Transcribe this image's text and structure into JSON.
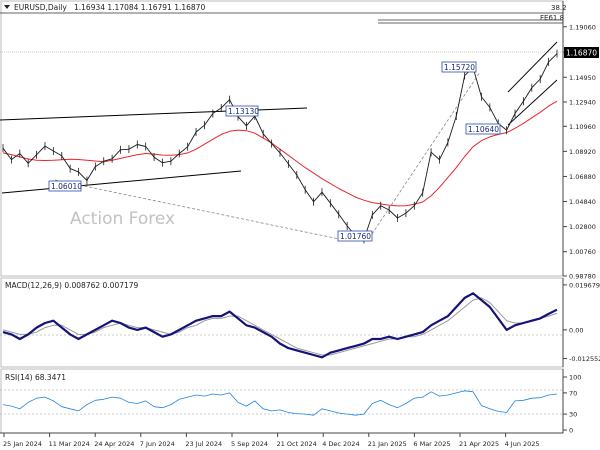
{
  "header": {
    "symbol": "EURUSD,Daily",
    "ohlc": "1.16934 1.17084 1.16791 1.16870"
  },
  "watermark": "Action Forex",
  "fib": {
    "level": "38.2",
    "label": "FE61.8"
  },
  "colors": {
    "price": "#1a1a1a",
    "ema": "#e8262e",
    "macd": "#15127a",
    "signal": "#9a9a9a",
    "rsi": "#1e86e0",
    "trendline": "#000000",
    "axis_text": "#222222",
    "grid_dashed": "#999999"
  },
  "chart_data": [
    {
      "name": "price",
      "type": "line",
      "y_ticks": [
        "1.19060",
        "1.16980",
        "1.14950",
        "1.12940",
        "1.10960",
        "1.08920",
        "1.06880",
        "1.04840",
        "1.02800",
        "1.00760",
        "0.98780"
      ],
      "ylim": [
        0.9878,
        1.2083
      ],
      "current_price": "1.16870",
      "x_ticks": [
        "25 Jan 2024",
        "11 Mar 2024",
        "24 Apr 2024",
        "7 Jun 2024",
        "23 Jul 2024",
        "5 Sep 2024",
        "21 Oct 2024",
        "4 Dec 2024",
        "21 Jan 2025",
        "6 Mar 2025",
        "21 Apr 2025",
        "4 Jun 2025"
      ],
      "annotations": [
        {
          "label": "1.13130",
          "value": 1.1313
        },
        {
          "label": "1.06010",
          "value": 1.0601
        },
        {
          "label": "1.01760",
          "value": 1.0176
        },
        {
          "label": "1.15720",
          "value": 1.1572
        },
        {
          "label": "1.10640",
          "value": 1.1064
        }
      ],
      "series": [
        {
          "values": [
            1.0918,
            1.0825,
            1.0875,
            1.0795,
            1.0865,
            1.0935,
            1.0895,
            1.0855,
            1.0752,
            1.0725,
            1.0655,
            1.0768,
            1.0812,
            1.0832,
            1.0905,
            1.091,
            1.0948,
            1.0932,
            1.0845,
            1.08,
            1.0812,
            1.0875,
            1.093,
            1.105,
            1.1105,
            1.12,
            1.1245,
            1.1313,
            1.1175,
            1.11,
            1.118,
            1.1035,
            1.0955,
            1.088,
            1.079,
            1.07,
            1.058,
            1.0482,
            1.056,
            1.047,
            1.038,
            1.0285,
            1.0205,
            1.0176,
            1.0375,
            1.045,
            1.0415,
            1.035,
            1.039,
            1.045,
            1.0555,
            1.0885,
            1.0825,
            1.0965,
            1.118,
            1.151,
            1.1572,
            1.1335,
            1.125,
            1.112,
            1.1064,
            1.12,
            1.13,
            1.141,
            1.148,
            1.162,
            1.1687
          ]
        },
        {
          "values": [
            1.088,
            1.0866,
            1.0847,
            1.083,
            1.082,
            1.0818,
            1.082,
            1.0824,
            1.0828,
            1.0826,
            1.082,
            1.0814,
            1.0808,
            1.082,
            1.0835,
            1.085,
            1.0865,
            1.0875,
            1.087,
            1.0862,
            1.086,
            1.0866,
            1.088,
            1.091,
            1.095,
            1.099,
            1.103,
            1.1055,
            1.1065,
            1.106,
            1.104,
            1.1,
            1.096,
            1.091,
            1.086,
            1.081,
            1.076,
            1.0715,
            1.067,
            1.063,
            1.059,
            1.0555,
            1.052,
            1.0495,
            1.0475,
            1.0465,
            1.0455,
            1.0448,
            1.045,
            1.0462,
            1.048,
            1.053,
            1.06,
            1.068,
            1.076,
            1.085,
            1.093,
            1.098,
            1.101,
            1.103,
            1.1045,
            1.108,
            1.112,
            1.1165,
            1.121,
            1.126,
            1.13
          ]
        }
      ]
    },
    {
      "name": "MACD(12,26,9)",
      "label": "MACD(12,26,9) 0.008762 0.007179",
      "type": "line",
      "y_ticks": [
        "0.019679",
        "0.00",
        "-0.012552"
      ],
      "ylim": [
        -0.0145,
        0.0205
      ],
      "series": [
        {
          "values": [
            -0.001,
            -0.002,
            -0.004,
            -0.002,
            0.001,
            0.003,
            0.004,
            0.001,
            -0.002,
            -0.004,
            -0.002,
            0.0,
            0.002,
            0.004,
            0.003,
            0.001,
            0.0,
            0.001,
            -0.001,
            -0.003,
            -0.002,
            0.0,
            0.002,
            0.004,
            0.005,
            0.006,
            0.006,
            0.008,
            0.005,
            0.002,
            0.001,
            -0.001,
            -0.003,
            -0.006,
            -0.008,
            -0.009,
            -0.01,
            -0.011,
            -0.012,
            -0.01,
            -0.009,
            -0.008,
            -0.007,
            -0.006,
            -0.004,
            -0.004,
            -0.003,
            -0.004,
            -0.003,
            -0.002,
            -0.001,
            0.002,
            0.004,
            0.006,
            0.01,
            0.014,
            0.016,
            0.013,
            0.01,
            0.005,
            0.0,
            0.002,
            0.003,
            0.004,
            0.005,
            0.007,
            0.0088
          ]
        },
        {
          "values": [
            0.0,
            -0.001,
            -0.002,
            -0.002,
            -0.001,
            0.001,
            0.002,
            0.002,
            0.0,
            -0.002,
            -0.002,
            -0.001,
            0.001,
            0.002,
            0.003,
            0.002,
            0.001,
            0.001,
            0.0,
            -0.001,
            -0.002,
            -0.001,
            0.001,
            0.002,
            0.004,
            0.005,
            0.005,
            0.006,
            0.006,
            0.004,
            0.002,
            0.0,
            -0.002,
            -0.004,
            -0.006,
            -0.008,
            -0.009,
            -0.01,
            -0.011,
            -0.011,
            -0.01,
            -0.009,
            -0.008,
            -0.007,
            -0.006,
            -0.005,
            -0.004,
            -0.004,
            -0.003,
            -0.003,
            -0.002,
            0.0,
            0.002,
            0.004,
            0.007,
            0.01,
            0.013,
            0.014,
            0.012,
            0.008,
            0.004,
            0.003,
            0.003,
            0.004,
            0.005,
            0.006,
            0.0072
          ]
        }
      ]
    },
    {
      "name": "RSI(14)",
      "label": "RSI(14) 68.3471",
      "type": "line",
      "y_ticks": [
        "100",
        "70",
        "30",
        "0"
      ],
      "ylim": [
        0,
        100
      ],
      "series": [
        {
          "values": [
            48,
            45,
            40,
            52,
            60,
            62,
            55,
            44,
            40,
            36,
            48,
            56,
            58,
            62,
            60,
            52,
            50,
            55,
            44,
            42,
            48,
            58,
            62,
            66,
            64,
            68,
            66,
            70,
            52,
            45,
            55,
            40,
            36,
            38,
            33,
            31,
            30,
            28,
            40,
            36,
            32,
            30,
            28,
            30,
            50,
            56,
            48,
            42,
            50,
            60,
            62,
            72,
            64,
            66,
            70,
            74,
            72,
            46,
            40,
            35,
            33,
            55,
            56,
            60,
            61,
            66,
            68
          ]
        }
      ]
    }
  ]
}
